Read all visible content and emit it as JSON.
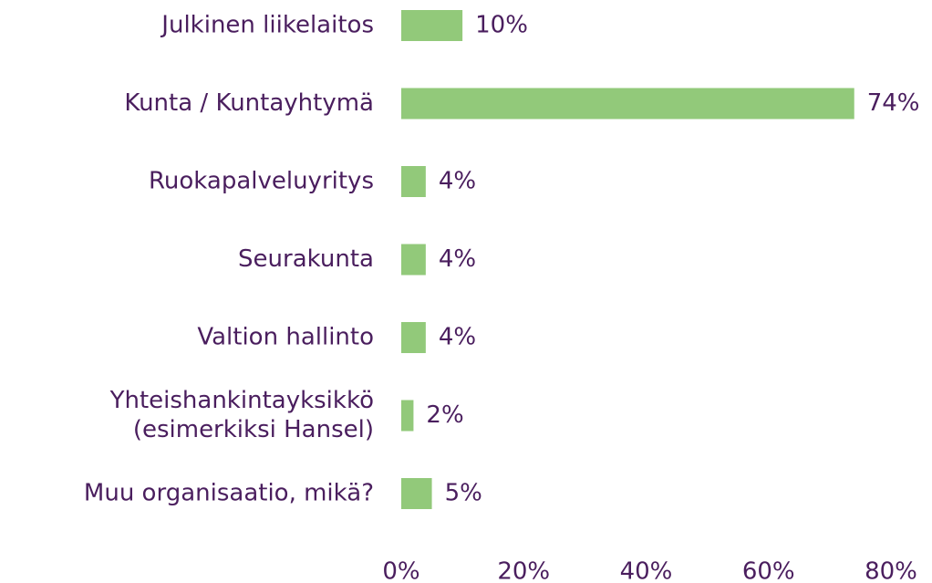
{
  "chart_data": {
    "type": "barh",
    "categories": [
      "Julkinen liikelaitos",
      "Kunta / Kuntayhtymä",
      "Ruokapalveluyritys",
      "Seurakunta",
      "Valtion hallinto",
      [
        "Yhteishankintayksikkö",
        "(esimerkiksi Hansel)"
      ],
      "Muu organisaatio, mikä?"
    ],
    "values": [
      10,
      74,
      4,
      4,
      4,
      2,
      5
    ],
    "value_labels": [
      "10%",
      "74%",
      "4%",
      "4%",
      "4%",
      "2%",
      "5%"
    ],
    "color": "#92c97a",
    "xlim": [
      0,
      80
    ],
    "xticks": [
      {
        "value": 0,
        "label": "0%"
      },
      {
        "value": 20,
        "label": "20%"
      },
      {
        "value": 40,
        "label": "40%"
      },
      {
        "value": 60,
        "label": "60%"
      },
      {
        "value": 80,
        "label": "80%"
      }
    ],
    "grid": false
  }
}
